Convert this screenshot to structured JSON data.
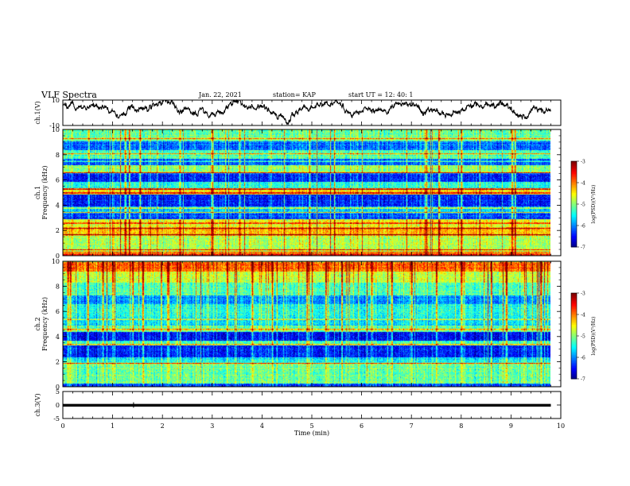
{
  "header": {
    "title": "VLF Spectra",
    "date": "Jan. 22, 2021",
    "station": "station= KAP",
    "start": "start  UT =   12: 40: 1"
  },
  "chart_data": [
    {
      "type": "line",
      "name": "ch1-waveform-panel",
      "ylabel": "ch.1(V)",
      "ylim": [
        -10,
        10
      ],
      "yticks": [
        "10",
        "-10"
      ],
      "xlim": [
        0,
        10
      ],
      "x_data_end_min": 9.8,
      "level_mean_V": 3,
      "level_range_V": [
        -10,
        10
      ]
    },
    {
      "type": "heatmap",
      "name": "ch1-spectrogram",
      "ylabel": "ch.1\nFrequency (kHz)",
      "ylim": [
        0,
        10
      ],
      "yticks": [
        "0",
        "2",
        "4",
        "6",
        "8",
        "10"
      ],
      "xlim": [
        0,
        10
      ],
      "x_data_end_min": 9.8,
      "colorbar": {
        "label": "log(PSD)(V²/Hz)",
        "range": [
          -7,
          -3
        ],
        "ticks": [
          "-3",
          "-4",
          "-5",
          "-6",
          "-7"
        ]
      },
      "bands": [
        {
          "f": [
            0.0,
            0.25
          ],
          "level": -3.6
        },
        {
          "f": [
            0.25,
            1.6
          ],
          "level": -4.8
        },
        {
          "f": [
            1.6,
            2.3
          ],
          "level": -4.3
        },
        {
          "f": [
            2.3,
            2.9
          ],
          "level": -4.6
        },
        {
          "f": [
            2.9,
            3.4
          ],
          "level": -6.3
        },
        {
          "f": [
            3.4,
            3.9
          ],
          "level": -5.7
        },
        {
          "f": [
            3.9,
            4.9
          ],
          "level": -6.4
        },
        {
          "f": [
            4.9,
            5.4
          ],
          "level": -4.4
        },
        {
          "f": [
            5.4,
            5.9
          ],
          "level": -5.4
        },
        {
          "f": [
            5.9,
            6.6
          ],
          "level": -6.4
        },
        {
          "f": [
            6.6,
            7.2
          ],
          "level": -4.9
        },
        {
          "f": [
            7.2,
            7.7
          ],
          "level": -6.2
        },
        {
          "f": [
            7.7,
            8.4
          ],
          "level": -5.2
        },
        {
          "f": [
            8.4,
            9.1
          ],
          "level": -6.1
        },
        {
          "f": [
            9.1,
            10.0
          ],
          "level": -5.1
        }
      ],
      "lines_kHz": [
        0.3,
        0.5,
        1.7,
        2.2,
        2.6,
        3.45,
        3.8,
        5.0,
        5.3,
        6.6,
        7.5,
        8.1,
        9.3
      ],
      "bursts_min": [
        0.52,
        1.25,
        1.33,
        1.55,
        2.35,
        3.0,
        3.55,
        4.95,
        5.45,
        7.3,
        7.55,
        8.0,
        9.02,
        9.08
      ]
    },
    {
      "type": "heatmap",
      "name": "ch2-spectrogram",
      "ylabel": "ch.2\nFrequency (kHz)",
      "ylim": [
        0,
        10
      ],
      "yticks": [
        "0",
        "2",
        "4",
        "6",
        "8",
        "10"
      ],
      "xlim": [
        0,
        10
      ],
      "x_data_end_min": 9.8,
      "colorbar": {
        "label": "log(PSD)(V²/Hz)",
        "range": [
          -7,
          -3
        ],
        "ticks": [
          "-3",
          "-4",
          "-5",
          "-6",
          "-7"
        ]
      },
      "bands": [
        {
          "f": [
            0.0,
            0.3
          ],
          "level": -6.2
        },
        {
          "f": [
            0.3,
            1.9
          ],
          "level": -5.1
        },
        {
          "f": [
            1.9,
            2.4
          ],
          "level": -5.6
        },
        {
          "f": [
            2.4,
            3.3
          ],
          "level": -6.4
        },
        {
          "f": [
            3.3,
            3.7
          ],
          "level": -5.3
        },
        {
          "f": [
            3.7,
            4.4
          ],
          "level": -6.5
        },
        {
          "f": [
            4.4,
            4.9
          ],
          "level": -5.1
        },
        {
          "f": [
            4.9,
            5.6
          ],
          "level": -5.6
        },
        {
          "f": [
            5.6,
            6.6
          ],
          "level": -5.4
        },
        {
          "f": [
            6.6,
            7.3
          ],
          "level": -5.9
        },
        {
          "f": [
            7.3,
            8.3
          ],
          "level": -5.2
        },
        {
          "f": [
            8.3,
            9.2
          ],
          "level": -4.7
        },
        {
          "f": [
            9.2,
            10.0
          ],
          "level": -3.9
        }
      ],
      "lines_kHz": [
        1.9,
        3.4,
        4.6,
        5.4
      ],
      "bursts_min": [
        0.1,
        0.15,
        0.5,
        0.8,
        1.0,
        1.4,
        1.6,
        2.1,
        2.35,
        3.3,
        3.8,
        4.2,
        4.9,
        5.6,
        6.2,
        6.6,
        7.0,
        7.5,
        8.0,
        8.6,
        8.9,
        9.6
      ]
    },
    {
      "type": "line",
      "name": "ch3-waveform-panel",
      "ylabel": "ch.3(V)",
      "xlabel": "Time (min)",
      "ylim": [
        -5,
        5
      ],
      "yticks": [
        "5",
        "0",
        "-5"
      ],
      "xlim": [
        0,
        10
      ],
      "xticks": [
        "0",
        "1",
        "2",
        "3",
        "4",
        "5",
        "6",
        "7",
        "8",
        "9",
        "10"
      ],
      "x_data_end_min": 9.8,
      "level_range_V": [
        -0.6,
        0.4
      ]
    }
  ]
}
